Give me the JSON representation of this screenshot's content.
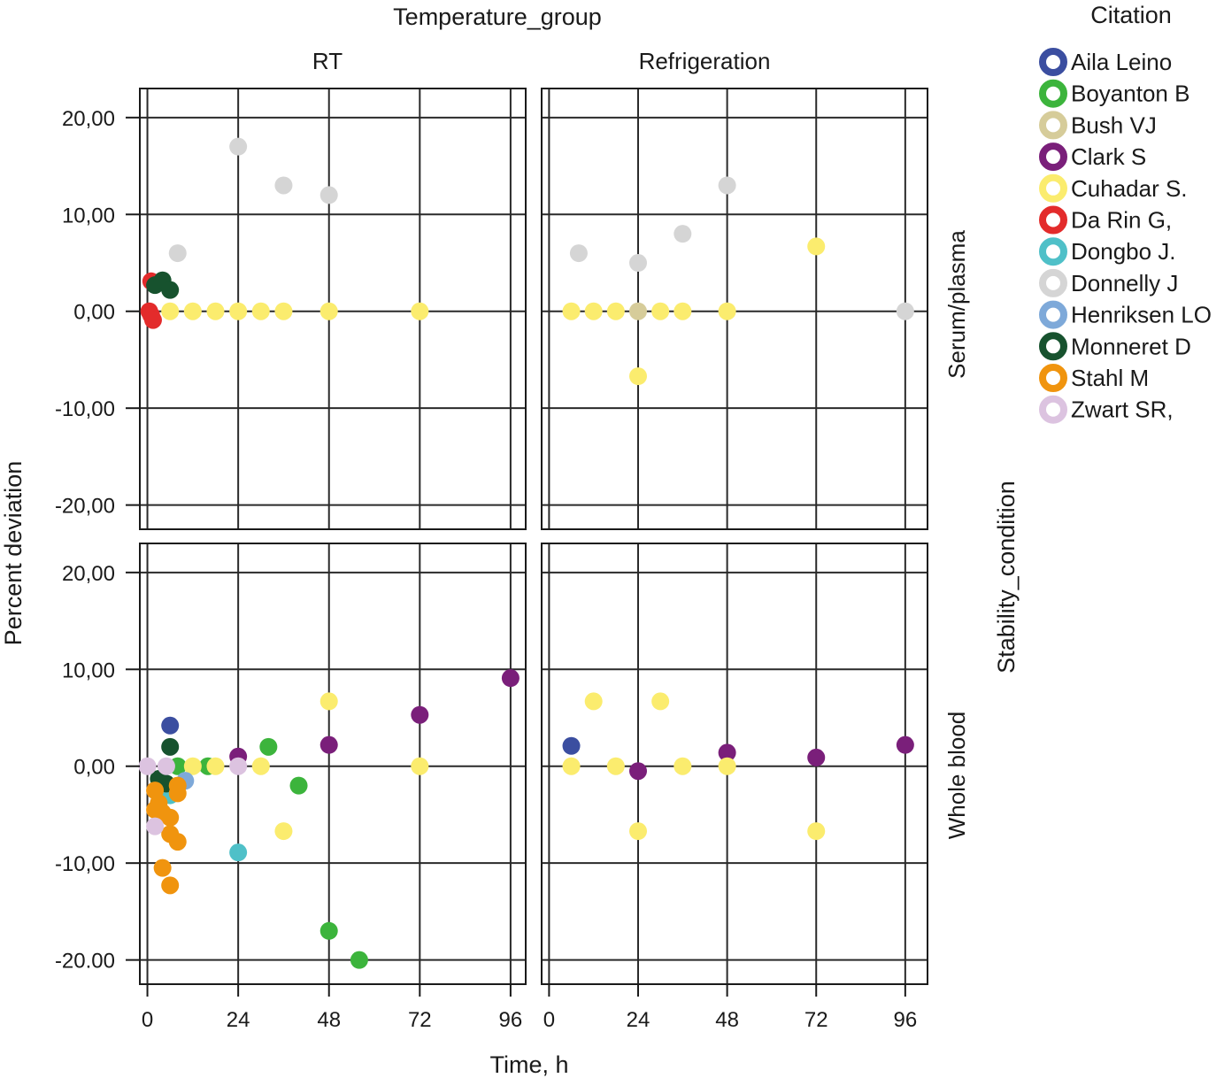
{
  "chart_data": {
    "type": "scatter",
    "facet_col_title": "Temperature_group",
    "facet_row_title": "Stability_condition",
    "xlabel": "Time, h",
    "ylabel": "Percent deviation",
    "columns": [
      "RT",
      "Refrigeration"
    ],
    "rows": [
      "Serum/plasma",
      "Whole blood"
    ],
    "xlim_panels": [
      [
        -2,
        100
      ],
      [
        -2,
        102
      ]
    ],
    "ylim": [
      -22.5,
      23
    ],
    "x_ticks": [
      0,
      24,
      48,
      72,
      96
    ],
    "x_tick_labels": [
      "0",
      "24",
      "48",
      "72",
      "96"
    ],
    "y_ticks": [
      20,
      10,
      0,
      -10,
      -20
    ],
    "y_tick_labels_top": [
      "20,00",
      "10,00",
      "0,00",
      "-10,00",
      "-20,00"
    ],
    "y_tick_labels_bottom": [
      "20,00",
      "10,00",
      "0,00",
      "-10,00",
      "-20.00"
    ],
    "legend_title": "Citation",
    "legend_position": "right",
    "series": [
      {
        "name": "Aila Leino",
        "color": "#3b4ea0",
        "points": [
          {
            "col": 0,
            "row": 1,
            "x": 6,
            "y": 4.2
          },
          {
            "col": 1,
            "row": 1,
            "x": 6,
            "y": 2.1
          }
        ]
      },
      {
        "name": "Boyanton B",
        "color": "#3cb43c",
        "points": [
          {
            "col": 0,
            "row": 1,
            "x": 32,
            "y": 2
          },
          {
            "col": 0,
            "row": 1,
            "x": 40,
            "y": -2
          },
          {
            "col": 0,
            "row": 1,
            "x": 48,
            "y": -17
          },
          {
            "col": 0,
            "row": 1,
            "x": 56,
            "y": -20
          },
          {
            "col": 0,
            "row": 1,
            "x": 16,
            "y": 0
          },
          {
            "col": 0,
            "row": 1,
            "x": 8,
            "y": 0
          }
        ]
      },
      {
        "name": "Bush VJ",
        "color": "#d6cc9a",
        "points": [
          {
            "col": 1,
            "row": 0,
            "x": 24,
            "y": 0
          }
        ]
      },
      {
        "name": "Clark S",
        "color": "#7a1f7a",
        "points": [
          {
            "col": 0,
            "row": 1,
            "x": 24,
            "y": 1
          },
          {
            "col": 0,
            "row": 1,
            "x": 48,
            "y": 2.2
          },
          {
            "col": 0,
            "row": 1,
            "x": 72,
            "y": 5.3
          },
          {
            "col": 0,
            "row": 1,
            "x": 96,
            "y": 9.1
          },
          {
            "col": 1,
            "row": 1,
            "x": 24,
            "y": -0.5
          },
          {
            "col": 1,
            "row": 1,
            "x": 48,
            "y": 1.4
          },
          {
            "col": 1,
            "row": 1,
            "x": 72,
            "y": 0.9
          },
          {
            "col": 1,
            "row": 1,
            "x": 96,
            "y": 2.2
          }
        ]
      },
      {
        "name": "Cuhadar S.",
        "color": "#fbec6e",
        "points": [
          {
            "col": 0,
            "row": 0,
            "x": 6,
            "y": 0
          },
          {
            "col": 0,
            "row": 0,
            "x": 12,
            "y": 0
          },
          {
            "col": 0,
            "row": 0,
            "x": 18,
            "y": 0
          },
          {
            "col": 0,
            "row": 0,
            "x": 24,
            "y": 0
          },
          {
            "col": 0,
            "row": 0,
            "x": 30,
            "y": 0
          },
          {
            "col": 0,
            "row": 0,
            "x": 36,
            "y": 0
          },
          {
            "col": 0,
            "row": 0,
            "x": 48,
            "y": 0
          },
          {
            "col": 0,
            "row": 0,
            "x": 72,
            "y": 0
          },
          {
            "col": 1,
            "row": 0,
            "x": 6,
            "y": 0
          },
          {
            "col": 1,
            "row": 0,
            "x": 12,
            "y": 0
          },
          {
            "col": 1,
            "row": 0,
            "x": 18,
            "y": 0
          },
          {
            "col": 1,
            "row": 0,
            "x": 30,
            "y": 0
          },
          {
            "col": 1,
            "row": 0,
            "x": 36,
            "y": 0
          },
          {
            "col": 1,
            "row": 0,
            "x": 48,
            "y": 0
          },
          {
            "col": 1,
            "row": 0,
            "x": 24,
            "y": -6.7
          },
          {
            "col": 1,
            "row": 0,
            "x": 72,
            "y": 6.7
          },
          {
            "col": 0,
            "row": 1,
            "x": 12,
            "y": 0
          },
          {
            "col": 0,
            "row": 1,
            "x": 18,
            "y": 0
          },
          {
            "col": 0,
            "row": 1,
            "x": 30,
            "y": 0
          },
          {
            "col": 0,
            "row": 1,
            "x": 36,
            "y": -6.7
          },
          {
            "col": 0,
            "row": 1,
            "x": 48,
            "y": 6.7
          },
          {
            "col": 0,
            "row": 1,
            "x": 72,
            "y": 0
          },
          {
            "col": 1,
            "row": 1,
            "x": 6,
            "y": 0
          },
          {
            "col": 1,
            "row": 1,
            "x": 12,
            "y": 6.7
          },
          {
            "col": 1,
            "row": 1,
            "x": 18,
            "y": 0
          },
          {
            "col": 1,
            "row": 1,
            "x": 24,
            "y": -6.7
          },
          {
            "col": 1,
            "row": 1,
            "x": 30,
            "y": 6.7
          },
          {
            "col": 1,
            "row": 1,
            "x": 36,
            "y": 0
          },
          {
            "col": 1,
            "row": 1,
            "x": 48,
            "y": 0
          },
          {
            "col": 1,
            "row": 1,
            "x": 72,
            "y": -6.7
          }
        ]
      },
      {
        "name": "Da Rin G,",
        "color": "#e32b2b",
        "points": [
          {
            "col": 0,
            "row": 0,
            "x": 1,
            "y": 3.1
          },
          {
            "col": 0,
            "row": 0,
            "x": 0.5,
            "y": 0
          },
          {
            "col": 0,
            "row": 0,
            "x": 1,
            "y": -0.4
          },
          {
            "col": 0,
            "row": 0,
            "x": 1.5,
            "y": -0.9
          }
        ]
      },
      {
        "name": "Dongbo J.",
        "color": "#4fc0c8",
        "points": [
          {
            "col": 0,
            "row": 1,
            "x": 24,
            "y": -8.9
          },
          {
            "col": 0,
            "row": 1,
            "x": 6,
            "y": -3
          }
        ]
      },
      {
        "name": "Donnelly J",
        "color": "#d5d5d5",
        "points": [
          {
            "col": 0,
            "row": 0,
            "x": 8,
            "y": 6
          },
          {
            "col": 0,
            "row": 0,
            "x": 24,
            "y": 17
          },
          {
            "col": 0,
            "row": 0,
            "x": 36,
            "y": 13
          },
          {
            "col": 0,
            "row": 0,
            "x": 48,
            "y": 12
          },
          {
            "col": 1,
            "row": 0,
            "x": 8,
            "y": 6
          },
          {
            "col": 1,
            "row": 0,
            "x": 24,
            "y": 5
          },
          {
            "col": 1,
            "row": 0,
            "x": 36,
            "y": 8
          },
          {
            "col": 1,
            "row": 0,
            "x": 48,
            "y": 13
          },
          {
            "col": 1,
            "row": 0,
            "x": 96,
            "y": 0
          }
        ]
      },
      {
        "name": "Henriksen LO",
        "color": "#7ea9d9",
        "points": [
          {
            "col": 0,
            "row": 1,
            "x": 10,
            "y": -1.5
          }
        ]
      },
      {
        "name": "Monneret D",
        "color": "#17522e",
        "points": [
          {
            "col": 0,
            "row": 0,
            "x": 2,
            "y": 2.7
          },
          {
            "col": 0,
            "row": 0,
            "x": 4,
            "y": 3.2
          },
          {
            "col": 0,
            "row": 0,
            "x": 6,
            "y": 2.2
          },
          {
            "col": 0,
            "row": 1,
            "x": 6,
            "y": 2
          },
          {
            "col": 0,
            "row": 1,
            "x": 3,
            "y": -1.3
          },
          {
            "col": 0,
            "row": 1,
            "x": 5,
            "y": -1.8
          }
        ]
      },
      {
        "name": "Stahl M",
        "color": "#f0940e",
        "points": [
          {
            "col": 0,
            "row": 1,
            "x": 2,
            "y": -2.5
          },
          {
            "col": 0,
            "row": 1,
            "x": 2,
            "y": -4.5
          },
          {
            "col": 0,
            "row": 1,
            "x": 3,
            "y": -3.8
          },
          {
            "col": 0,
            "row": 1,
            "x": 4,
            "y": -4.8
          },
          {
            "col": 0,
            "row": 1,
            "x": 6,
            "y": -5.3
          },
          {
            "col": 0,
            "row": 1,
            "x": 6,
            "y": -7
          },
          {
            "col": 0,
            "row": 1,
            "x": 8,
            "y": -7.8
          },
          {
            "col": 0,
            "row": 1,
            "x": 8,
            "y": -2
          },
          {
            "col": 0,
            "row": 1,
            "x": 8,
            "y": -2.8
          },
          {
            "col": 0,
            "row": 1,
            "x": 4,
            "y": -10.5
          },
          {
            "col": 0,
            "row": 1,
            "x": 6,
            "y": -12.3
          }
        ]
      },
      {
        "name": "Zwart SR,",
        "color": "#dcc3e0",
        "points": [
          {
            "col": 0,
            "row": 1,
            "x": 0,
            "y": 0
          },
          {
            "col": 0,
            "row": 1,
            "x": 5,
            "y": 0
          },
          {
            "col": 0,
            "row": 1,
            "x": 24,
            "y": 0
          },
          {
            "col": 0,
            "row": 1,
            "x": 2,
            "y": -6.2
          }
        ]
      }
    ]
  }
}
